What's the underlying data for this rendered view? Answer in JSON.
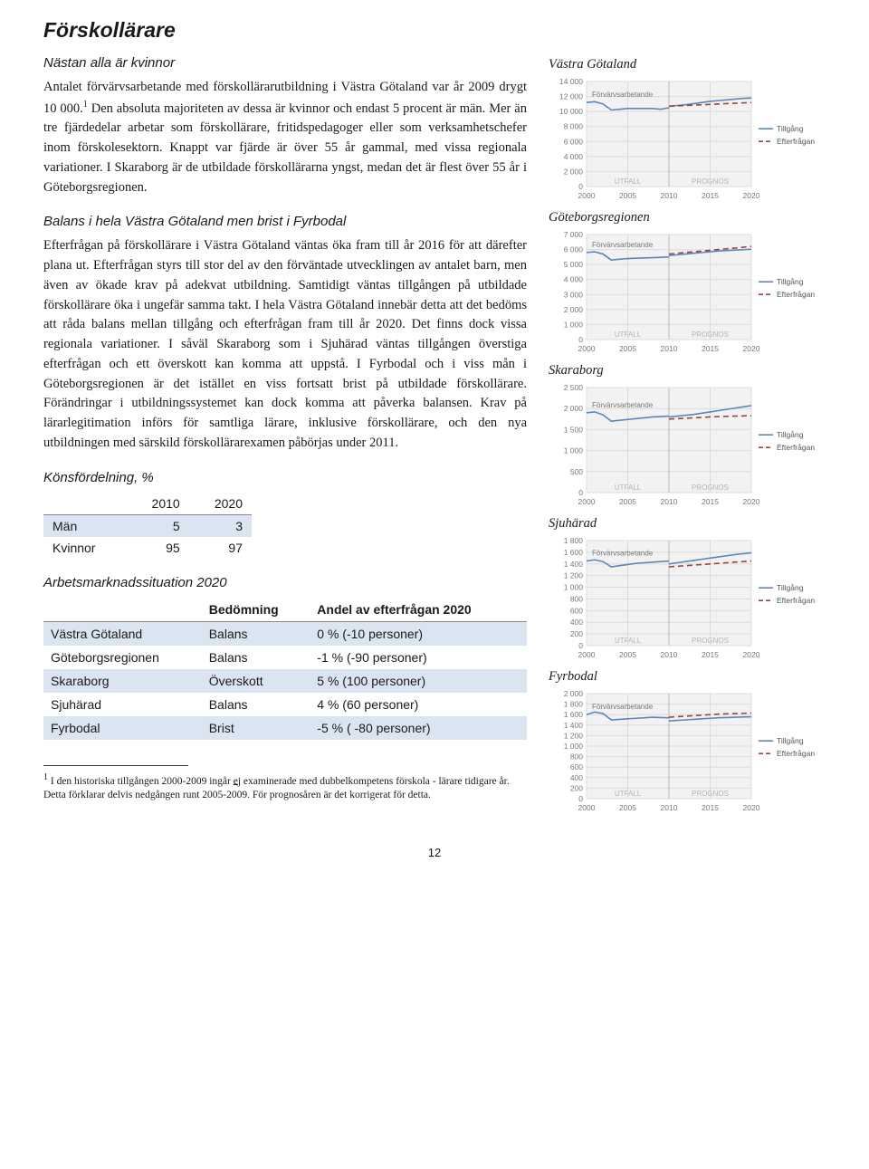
{
  "title": "Förskollärare",
  "section1_heading": "Nästan alla är kvinnor",
  "para1_a": "Antalet förvärvsarbetande med förskollärarutbildning i Västra Götaland var år 2009 drygt 10 000.",
  "para1_sup": "1",
  "para1_b": " Den absoluta majoriteten av dessa är kvinnor och endast 5 procent är män. Mer än tre fjärdedelar arbetar som förskollärare, fritidspedagoger eller som verksamhetschefer inom förskolesektorn. Knappt var fjärde är över 55 år gammal, med vissa regionala variationer. I Skaraborg är de utbildade förskollärarna yngst, medan det är flest över 55 år i Göteborgsregionen.",
  "section2_heading": "Balans i hela Västra Götaland men brist i Fyrbodal",
  "para2": "Efterfrågan på förskollärare i Västra Götaland väntas öka fram till år 2016 för att därefter plana ut. Efterfrågan styrs till stor del av den förväntade utvecklingen av antalet barn, men även av ökade krav på adekvat utbildning. Samtidigt väntas tillgången på utbildade förskollärare öka i ungefär samma takt. I hela Västra Götaland innebär detta att det bedöms att råda balans mellan tillgång och efterfrågan fram till år 2020. Det finns dock vissa regionala variationer. I såväl Skaraborg som i Sjuhärad väntas tillgången överstiga efterfrågan och ett överskott kan komma att uppstå. I Fyrbodal och i viss mån i Göteborgsregionen är det istället en viss fortsatt brist på utbildade förskollärare. Förändringar i utbildningssystemet kan dock komma att påverka balansen. Krav på lärarlegitimation införs för samtliga lärare, inklusive förskollärare, och den nya utbildningen med särskild förskollärarexamen påbörjas under 2011.",
  "kons_heading": "Könsfördelning, %",
  "kons_table": {
    "years": [
      "2010",
      "2020"
    ],
    "rows": [
      {
        "label": "Män",
        "v1": "5",
        "v2": "3"
      },
      {
        "label": "Kvinnor",
        "v1": "95",
        "v2": "97"
      }
    ]
  },
  "arb_heading": "Arbetsmarknadssituation 2020",
  "arb_table": {
    "columns": [
      "",
      "Bedömning",
      "Andel av efterfrågan 2020"
    ],
    "rows": [
      {
        "region": "Västra Götaland",
        "bed": "Balans",
        "andel": "0 % (-10 personer)"
      },
      {
        "region": "Göteborgsregionen",
        "bed": "Balans",
        "andel": "-1 % (-90 personer)"
      },
      {
        "region": "Skaraborg",
        "bed": "Överskott",
        "andel": "5 % (100 personer)"
      },
      {
        "region": "Sjuhärad",
        "bed": "Balans",
        "andel": "4 % (60 personer)"
      },
      {
        "region": "Fyrbodal",
        "bed": "Brist",
        "andel": "-5 % ( -80 personer)"
      }
    ]
  },
  "footnote_sup": "1",
  "footnote_a": " I den historiska tillgången 2000-2009 ingår ",
  "footnote_u": "ej",
  "footnote_b": " examinerade med dubbelkompetens förskola - lärare tidigare år. Detta förklarar delvis nedgången runt 2005-2009. För prognosåren är det korrigerat för detta.",
  "pagenum": "12",
  "charts": [
    {
      "title": "Västra Götaland",
      "ymax": 14000,
      "ystep": 2000,
      "x": [
        2000,
        2005,
        2010,
        2015,
        2020
      ],
      "forv": [
        11200,
        11300,
        11000,
        10200,
        10300,
        10400,
        10400,
        10400,
        10400,
        10300,
        10500
      ],
      "till": [
        10700,
        10800,
        10900,
        11050,
        11200,
        11350,
        11450,
        11550,
        11650,
        11750,
        11800
      ],
      "eft": [
        10700,
        10750,
        10800,
        10850,
        10900,
        10950,
        11000,
        11050,
        11100,
        11150,
        11200
      ],
      "bg": "#f2f2f2",
      "grid": "#dcdcdc",
      "forv_c": "#5b86b6",
      "till_c": "#5b86b6",
      "eft_c": "#a04040"
    },
    {
      "title": "Göteborgsregionen",
      "ymax": 7000,
      "ystep": 1000,
      "x": [
        2000,
        2005,
        2010,
        2015,
        2020
      ],
      "forv": [
        5800,
        5850,
        5700,
        5300,
        5350,
        5400,
        5420,
        5440,
        5460,
        5480,
        5500
      ],
      "till": [
        5600,
        5650,
        5700,
        5750,
        5800,
        5850,
        5900,
        5930,
        5960,
        5990,
        6020
      ],
      "eft": [
        5700,
        5750,
        5800,
        5850,
        5900,
        5950,
        6000,
        6050,
        6100,
        6150,
        6200
      ],
      "bg": "#f2f2f2",
      "grid": "#dcdcdc",
      "forv_c": "#5b86b6",
      "till_c": "#5b86b6",
      "eft_c": "#a04040"
    },
    {
      "title": "Skaraborg",
      "ymax": 2500,
      "ystep": 500,
      "x": [
        2000,
        2005,
        2010,
        2015,
        2020
      ],
      "forv": [
        1900,
        1920,
        1850,
        1700,
        1720,
        1740,
        1760,
        1780,
        1800,
        1810,
        1820
      ],
      "till": [
        1800,
        1820,
        1840,
        1860,
        1890,
        1920,
        1950,
        1980,
        2010,
        2040,
        2070
      ],
      "eft": [
        1750,
        1760,
        1770,
        1780,
        1790,
        1800,
        1810,
        1815,
        1820,
        1825,
        1830
      ],
      "bg": "#f2f2f2",
      "grid": "#dcdcdc",
      "forv_c": "#5b86b6",
      "till_c": "#5b86b6",
      "eft_c": "#a04040"
    },
    {
      "title": "Sjuhärad",
      "ymax": 1800,
      "ystep": 200,
      "x": [
        2000,
        2005,
        2010,
        2015,
        2020
      ],
      "forv": [
        1450,
        1470,
        1440,
        1350,
        1370,
        1390,
        1410,
        1420,
        1430,
        1440,
        1450
      ],
      "till": [
        1400,
        1420,
        1440,
        1460,
        1480,
        1500,
        1520,
        1540,
        1560,
        1575,
        1590
      ],
      "eft": [
        1350,
        1360,
        1370,
        1380,
        1390,
        1400,
        1410,
        1420,
        1430,
        1440,
        1450
      ],
      "bg": "#f2f2f2",
      "grid": "#dcdcdc",
      "forv_c": "#5b86b6",
      "till_c": "#5b86b6",
      "eft_c": "#a04040"
    },
    {
      "title": "Fyrbodal",
      "ymax": 2000,
      "ystep": 200,
      "x": [
        2000,
        2005,
        2010,
        2015,
        2020
      ],
      "forv": [
        1600,
        1650,
        1620,
        1500,
        1510,
        1520,
        1530,
        1540,
        1550,
        1545,
        1540
      ],
      "till": [
        1480,
        1490,
        1500,
        1510,
        1520,
        1530,
        1540,
        1545,
        1550,
        1555,
        1560
      ],
      "eft": [
        1550,
        1560,
        1570,
        1580,
        1590,
        1600,
        1610,
        1615,
        1620,
        1625,
        1630
      ],
      "bg": "#f2f2f2",
      "grid": "#dcdcdc",
      "forv_c": "#5b86b6",
      "till_c": "#5b86b6",
      "eft_c": "#a04040"
    }
  ],
  "chart_labels": {
    "forv": "Förvärvsarbetande",
    "till": "Tillgång",
    "eft": "Efterfrågan",
    "utfall": "UTFALL",
    "prognos": "PROGNOS"
  }
}
